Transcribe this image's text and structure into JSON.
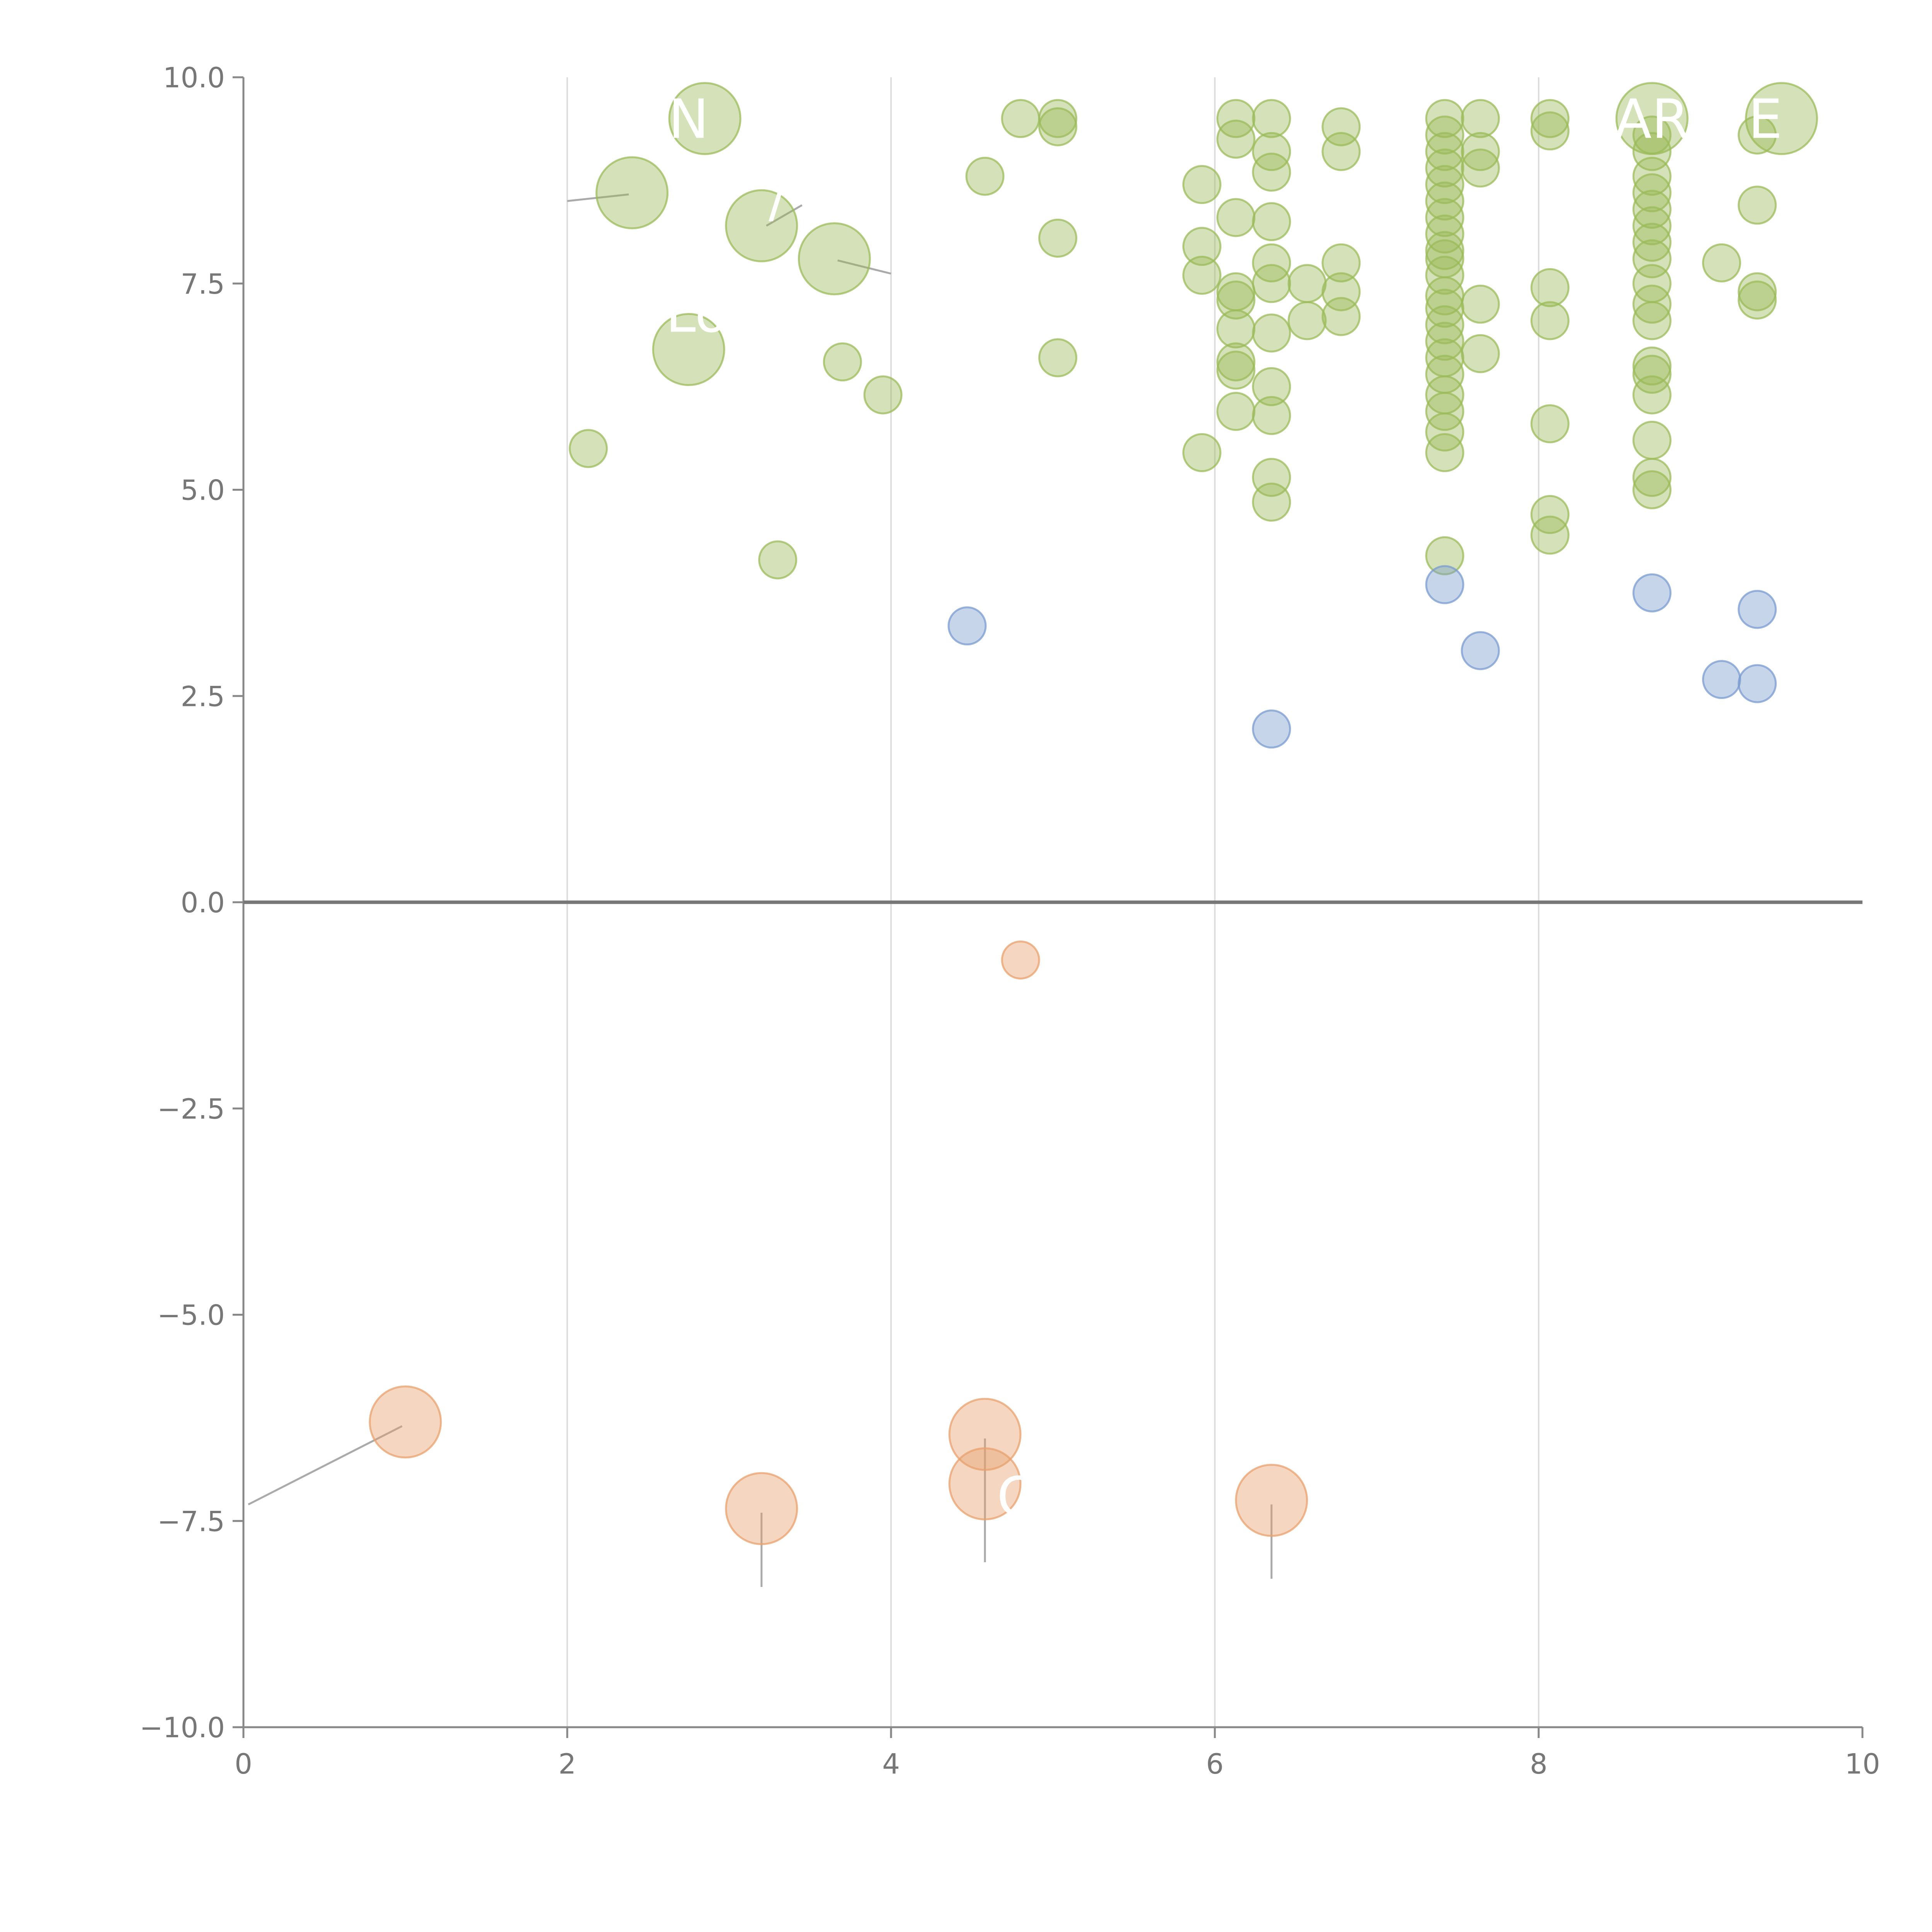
{
  "chart_data": {
    "type": "scatter",
    "title": "",
    "xlabel": "",
    "ylabel": "",
    "xlim": [
      0,
      10
    ],
    "ylim": [
      -10,
      10
    ],
    "grid": {
      "x": true,
      "y": false
    },
    "x_ticks": [
      "0",
      "2",
      "4",
      "6",
      "8",
      "10"
    ],
    "y_ticks": [
      "−10.0",
      "−7.5",
      "−5.0",
      "−2.5",
      "0.0",
      "2.5",
      "5.0",
      "7.5",
      "10.0"
    ],
    "x_tick_values": [
      0,
      2,
      4,
      6,
      8,
      10
    ],
    "y_tick_values": [
      -10,
      -7.5,
      -5,
      -2.5,
      0,
      2.5,
      5,
      7.5,
      10
    ],
    "colors": {
      "green": "#9bbb59",
      "blue": "#7a9bd0",
      "orange": "#e8a06c",
      "label_text": "#ffffff",
      "leader_line": "#aaaaaa"
    },
    "series": [
      {
        "name": "green",
        "color": "#9bbb59",
        "points": [
          [
            2.85,
            9.5,
            1
          ],
          [
            2.4,
            8.6,
            1
          ],
          [
            3.2,
            8.2,
            1
          ],
          [
            3.65,
            7.8,
            1
          ],
          [
            2.75,
            6.7,
            1
          ],
          [
            2.13,
            5.5,
            0
          ],
          [
            3.3,
            4.15,
            0
          ],
          [
            3.7,
            6.55,
            0
          ],
          [
            3.95,
            6.15,
            0
          ],
          [
            4.58,
            8.8,
            0
          ],
          [
            4.8,
            9.5,
            0
          ],
          [
            5.03,
            9.4,
            0
          ],
          [
            5.03,
            9.5,
            0
          ],
          [
            5.03,
            8.05,
            0
          ],
          [
            5.03,
            6.6,
            0
          ],
          [
            5.92,
            8.7,
            0
          ],
          [
            5.92,
            7.95,
            0
          ],
          [
            5.92,
            7.6,
            0
          ],
          [
            5.92,
            5.45,
            0
          ],
          [
            6.13,
            9.5,
            0
          ],
          [
            6.13,
            9.25,
            0
          ],
          [
            6.13,
            8.3,
            0
          ],
          [
            6.13,
            7.4,
            0
          ],
          [
            6.13,
            7.3,
            0
          ],
          [
            6.13,
            6.95,
            0
          ],
          [
            6.13,
            6.55,
            0
          ],
          [
            6.13,
            6.45,
            0
          ],
          [
            6.13,
            5.95,
            0
          ],
          [
            6.35,
            9.5,
            0
          ],
          [
            6.35,
            9.1,
            0
          ],
          [
            6.35,
            8.85,
            0
          ],
          [
            6.35,
            8.25,
            0
          ],
          [
            6.35,
            7.75,
            0
          ],
          [
            6.35,
            7.5,
            0
          ],
          [
            6.35,
            6.9,
            0
          ],
          [
            6.35,
            6.25,
            0
          ],
          [
            6.35,
            5.9,
            0
          ],
          [
            6.35,
            5.15,
            0
          ],
          [
            6.35,
            4.85,
            0
          ],
          [
            6.57,
            7.5,
            0
          ],
          [
            6.57,
            7.05,
            0
          ],
          [
            6.78,
            9.4,
            0
          ],
          [
            6.78,
            9.1,
            0
          ],
          [
            6.78,
            7.75,
            0
          ],
          [
            6.78,
            7.4,
            0
          ],
          [
            6.78,
            7.1,
            0
          ],
          [
            7.42,
            9.5,
            0
          ],
          [
            7.42,
            9.3,
            0
          ],
          [
            7.42,
            9.1,
            0
          ],
          [
            7.42,
            8.9,
            0
          ],
          [
            7.42,
            8.7,
            0
          ],
          [
            7.42,
            8.5,
            0
          ],
          [
            7.42,
            8.3,
            0
          ],
          [
            7.42,
            8.1,
            0
          ],
          [
            7.42,
            7.9,
            0
          ],
          [
            7.42,
            7.8,
            0
          ],
          [
            7.42,
            7.6,
            0
          ],
          [
            7.42,
            7.35,
            0
          ],
          [
            7.42,
            7.2,
            0
          ],
          [
            7.42,
            7.0,
            0
          ],
          [
            7.42,
            6.8,
            0
          ],
          [
            7.42,
            6.6,
            0
          ],
          [
            7.42,
            6.4,
            0
          ],
          [
            7.42,
            6.15,
            0
          ],
          [
            7.42,
            5.95,
            0
          ],
          [
            7.42,
            5.7,
            0
          ],
          [
            7.42,
            5.45,
            0
          ],
          [
            7.42,
            4.2,
            0
          ],
          [
            7.64,
            9.5,
            0
          ],
          [
            7.64,
            9.1,
            0
          ],
          [
            7.64,
            8.9,
            0
          ],
          [
            7.64,
            7.25,
            0
          ],
          [
            7.64,
            6.65,
            0
          ],
          [
            8.07,
            9.5,
            0
          ],
          [
            8.07,
            9.35,
            0
          ],
          [
            8.07,
            7.45,
            0
          ],
          [
            8.07,
            7.05,
            0
          ],
          [
            8.07,
            5.8,
            0
          ],
          [
            8.07,
            4.7,
            0
          ],
          [
            8.07,
            4.45,
            0
          ],
          [
            8.7,
            9.5,
            1
          ],
          [
            8.7,
            9.3,
            0
          ],
          [
            8.7,
            9.1,
            0
          ],
          [
            8.7,
            8.8,
            0
          ],
          [
            8.7,
            8.6,
            0
          ],
          [
            8.7,
            8.4,
            0
          ],
          [
            8.7,
            8.2,
            0
          ],
          [
            8.7,
            8.0,
            0
          ],
          [
            8.7,
            7.8,
            0
          ],
          [
            8.7,
            7.5,
            0
          ],
          [
            8.7,
            7.25,
            0
          ],
          [
            8.7,
            7.05,
            0
          ],
          [
            8.7,
            6.5,
            0
          ],
          [
            8.7,
            6.4,
            0
          ],
          [
            8.7,
            6.15,
            0
          ],
          [
            8.7,
            5.6,
            0
          ],
          [
            8.7,
            5.15,
            0
          ],
          [
            8.7,
            5.0,
            0
          ],
          [
            9.13,
            7.75,
            0
          ],
          [
            9.35,
            9.3,
            0
          ],
          [
            9.35,
            8.45,
            0
          ],
          [
            9.35,
            7.4,
            0
          ],
          [
            9.35,
            7.3,
            0
          ],
          [
            9.5,
            9.5,
            1
          ]
        ]
      },
      {
        "name": "blue",
        "color": "#7a9bd0",
        "points": [
          [
            4.47,
            3.35,
            0
          ],
          [
            6.35,
            2.1,
            0
          ],
          [
            7.42,
            3.85,
            0
          ],
          [
            7.64,
            3.05,
            0
          ],
          [
            8.7,
            3.75,
            0
          ],
          [
            9.13,
            2.7,
            0
          ],
          [
            9.35,
            2.65,
            0
          ],
          [
            9.35,
            3.55,
            0
          ]
        ]
      },
      {
        "name": "orange",
        "color": "#e8a06c",
        "points": [
          [
            4.8,
            -0.7,
            0
          ],
          [
            1.0,
            -6.3,
            1
          ],
          [
            3.2,
            -7.35,
            1
          ],
          [
            4.58,
            -6.45,
            1
          ],
          [
            4.58,
            -7.05,
            1
          ],
          [
            6.35,
            -7.25,
            1
          ]
        ]
      }
    ],
    "point_labels": [
      {
        "text": "N",
        "x": 2.75,
        "y": 9.5
      },
      {
        "text": "Lo",
        "x": 2.8,
        "y": 7.15
      },
      {
        "text": "/",
        "x": 3.3,
        "y": 8.55
      },
      {
        "text": "AR",
        "x": 8.7,
        "y": 9.5
      },
      {
        "text": "E",
        "x": 9.4,
        "y": 9.5
      },
      {
        "text": "C",
        "x": 4.77,
        "y": -7.2
      }
    ],
    "leader_lines": [
      {
        "x1": 0.03,
        "y1": -7.3,
        "x2": 0.98,
        "y2": -6.35
      },
      {
        "x1": 3.2,
        "y1": -7.4,
        "x2": 3.2,
        "y2": -8.3
      },
      {
        "x1": 4.58,
        "y1": -6.5,
        "x2": 4.58,
        "y2": -8.0
      },
      {
        "x1": 6.35,
        "y1": -7.3,
        "x2": 6.35,
        "y2": -8.2
      },
      {
        "x1": 2.0,
        "y1": 8.5,
        "x2": 2.38,
        "y2": 8.58
      },
      {
        "x1": 3.23,
        "y1": 8.2,
        "x2": 3.45,
        "y2": 8.45
      },
      {
        "x1": 3.67,
        "y1": 7.78,
        "x2": 4.0,
        "y2": 7.62
      }
    ]
  }
}
